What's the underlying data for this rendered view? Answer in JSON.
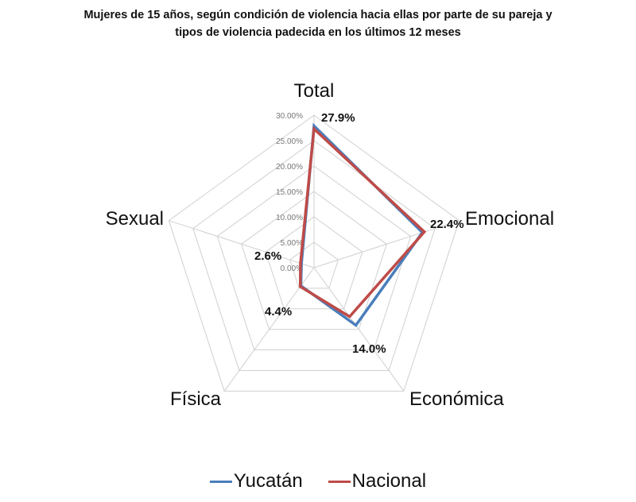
{
  "title": {
    "line1": "Mujeres de 15 años, según condición de violencia hacia ellas por parte de su pareja y",
    "line2": "tipos de violencia padecida en los últimos 12 meses"
  },
  "legend": [
    {
      "name": "Yucatán",
      "color": "#4a7ebb"
    },
    {
      "name": "Nacional",
      "color": "#be4b48"
    }
  ],
  "chart_data": {
    "type": "radar",
    "title": "Mujeres de 15 años, según condición de violencia hacia ellas por parte de su pareja y tipos de violencia padecida en los últimos 12 meses",
    "categories": [
      "Total",
      "Emocional",
      "Económica",
      "Física",
      "Sexual"
    ],
    "series": [
      {
        "name": "Yucatán",
        "color": "#4a7ebb",
        "values": [
          27.9,
          22.4,
          14.0,
          4.4,
          2.6
        ]
      },
      {
        "name": "Nacional",
        "color": "#be4b48",
        "values": [
          27.3,
          22.8,
          11.9,
          4.6,
          2.8
        ]
      }
    ],
    "data_labels": [
      {
        "category": "Total",
        "text": "27.9%"
      },
      {
        "category": "Emocional",
        "text": "22.4%"
      },
      {
        "category": "Económica",
        "text": "14.0%"
      },
      {
        "category": "Física",
        "text": "4.4%"
      },
      {
        "category": "Sexual",
        "text": "2.6%"
      }
    ],
    "radial_ticks": [
      "0.00%",
      "5.00%",
      "10.00%",
      "15.00%",
      "20.00%",
      "25.00%",
      "30.00%"
    ],
    "rlim": [
      0,
      30
    ],
    "grid": true,
    "legend_position": "bottom"
  }
}
